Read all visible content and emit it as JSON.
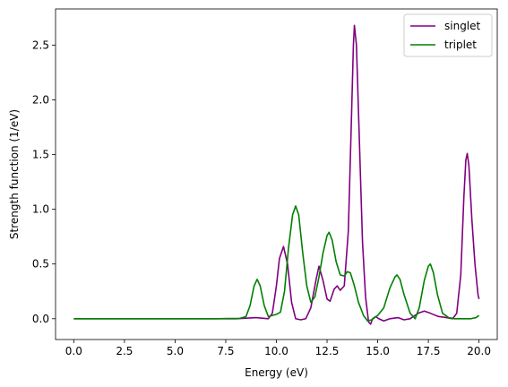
{
  "chart_data": {
    "type": "line",
    "xlabel": "Energy (eV)",
    "ylabel": "Strength function (1/eV)",
    "xlim": [
      -0.9,
      20.9
    ],
    "ylim": [
      -0.19,
      2.83
    ],
    "x_ticks": [
      {
        "value": 0,
        "label": "0.0"
      },
      {
        "value": 2.5,
        "label": "2.5"
      },
      {
        "value": 5,
        "label": "5.0"
      },
      {
        "value": 7.5,
        "label": "7.5"
      },
      {
        "value": 10,
        "label": "10.0"
      },
      {
        "value": 12.5,
        "label": "12.5"
      },
      {
        "value": 15,
        "label": "15.0"
      },
      {
        "value": 17.5,
        "label": "17.5"
      },
      {
        "value": 20,
        "label": "20.0"
      }
    ],
    "y_ticks": [
      {
        "value": 0,
        "label": "0.0"
      },
      {
        "value": 0.5,
        "label": "0.5"
      },
      {
        "value": 1,
        "label": "1.0"
      },
      {
        "value": 1.5,
        "label": "1.5"
      },
      {
        "value": 2,
        "label": "2.0"
      },
      {
        "value": 2.5,
        "label": "2.5"
      }
    ],
    "grid": false,
    "legend_position": "top-right",
    "series": [
      {
        "name": "singlet",
        "color": "#800080",
        "points": [
          [
            0,
            0
          ],
          [
            7.0,
            0
          ],
          [
            8.0,
            0
          ],
          [
            8.5,
            0.005
          ],
          [
            9.0,
            0.01
          ],
          [
            9.3,
            0.005
          ],
          [
            9.6,
            0.0
          ],
          [
            9.8,
            0.05
          ],
          [
            10.0,
            0.3
          ],
          [
            10.15,
            0.55
          ],
          [
            10.35,
            0.66
          ],
          [
            10.55,
            0.5
          ],
          [
            10.75,
            0.15
          ],
          [
            10.95,
            0.0
          ],
          [
            11.2,
            -0.01
          ],
          [
            11.45,
            0.0
          ],
          [
            11.7,
            0.1
          ],
          [
            11.95,
            0.35
          ],
          [
            12.1,
            0.48
          ],
          [
            12.3,
            0.35
          ],
          [
            12.5,
            0.18
          ],
          [
            12.65,
            0.16
          ],
          [
            12.85,
            0.27
          ],
          [
            13.0,
            0.3
          ],
          [
            13.15,
            0.26
          ],
          [
            13.35,
            0.3
          ],
          [
            13.55,
            0.8
          ],
          [
            13.7,
            1.8
          ],
          [
            13.8,
            2.5
          ],
          [
            13.85,
            2.68
          ],
          [
            13.95,
            2.5
          ],
          [
            14.1,
            1.6
          ],
          [
            14.25,
            0.7
          ],
          [
            14.4,
            0.2
          ],
          [
            14.55,
            -0.03
          ],
          [
            14.65,
            -0.05
          ],
          [
            14.75,
            0.0
          ],
          [
            14.9,
            0.02
          ],
          [
            15.05,
            0.0
          ],
          [
            15.3,
            -0.02
          ],
          [
            15.6,
            0.0
          ],
          [
            16.0,
            0.01
          ],
          [
            16.3,
            -0.01
          ],
          [
            16.6,
            0.0
          ],
          [
            17.0,
            0.05
          ],
          [
            17.3,
            0.07
          ],
          [
            17.6,
            0.05
          ],
          [
            18.0,
            0.02
          ],
          [
            18.4,
            0.01
          ],
          [
            18.7,
            0.0
          ],
          [
            18.9,
            0.05
          ],
          [
            19.1,
            0.4
          ],
          [
            19.25,
            1.1
          ],
          [
            19.35,
            1.45
          ],
          [
            19.42,
            1.51
          ],
          [
            19.5,
            1.4
          ],
          [
            19.65,
            0.9
          ],
          [
            19.8,
            0.5
          ],
          [
            19.95,
            0.22
          ],
          [
            20.0,
            0.18
          ]
        ]
      },
      {
        "name": "triplet",
        "color": "#008000",
        "points": [
          [
            0,
            0
          ],
          [
            7.0,
            0
          ],
          [
            7.8,
            0.002
          ],
          [
            8.2,
            0.003
          ],
          [
            8.5,
            0.02
          ],
          [
            8.7,
            0.12
          ],
          [
            8.9,
            0.3
          ],
          [
            9.05,
            0.36
          ],
          [
            9.2,
            0.3
          ],
          [
            9.4,
            0.12
          ],
          [
            9.6,
            0.02
          ],
          [
            9.8,
            0.03
          ],
          [
            10.0,
            0.04
          ],
          [
            10.2,
            0.06
          ],
          [
            10.4,
            0.25
          ],
          [
            10.6,
            0.65
          ],
          [
            10.8,
            0.95
          ],
          [
            10.95,
            1.03
          ],
          [
            11.1,
            0.95
          ],
          [
            11.3,
            0.6
          ],
          [
            11.5,
            0.3
          ],
          [
            11.7,
            0.15
          ],
          [
            11.9,
            0.2
          ],
          [
            12.1,
            0.38
          ],
          [
            12.3,
            0.6
          ],
          [
            12.5,
            0.76
          ],
          [
            12.6,
            0.79
          ],
          [
            12.75,
            0.72
          ],
          [
            12.95,
            0.52
          ],
          [
            13.15,
            0.4
          ],
          [
            13.35,
            0.39
          ],
          [
            13.5,
            0.43
          ],
          [
            13.65,
            0.42
          ],
          [
            13.85,
            0.3
          ],
          [
            14.05,
            0.15
          ],
          [
            14.3,
            0.03
          ],
          [
            14.5,
            -0.02
          ],
          [
            14.7,
            -0.01
          ],
          [
            15.0,
            0.03
          ],
          [
            15.3,
            0.1
          ],
          [
            15.6,
            0.28
          ],
          [
            15.85,
            0.38
          ],
          [
            15.95,
            0.4
          ],
          [
            16.1,
            0.36
          ],
          [
            16.3,
            0.22
          ],
          [
            16.6,
            0.05
          ],
          [
            16.85,
            0.0
          ],
          [
            17.05,
            0.1
          ],
          [
            17.3,
            0.35
          ],
          [
            17.5,
            0.48
          ],
          [
            17.6,
            0.5
          ],
          [
            17.75,
            0.42
          ],
          [
            17.95,
            0.22
          ],
          [
            18.2,
            0.05
          ],
          [
            18.5,
            0.01
          ],
          [
            18.8,
            0.0
          ],
          [
            19.2,
            0.0
          ],
          [
            19.6,
            0.0
          ],
          [
            19.85,
            0.01
          ],
          [
            20.0,
            0.03
          ]
        ]
      }
    ]
  }
}
